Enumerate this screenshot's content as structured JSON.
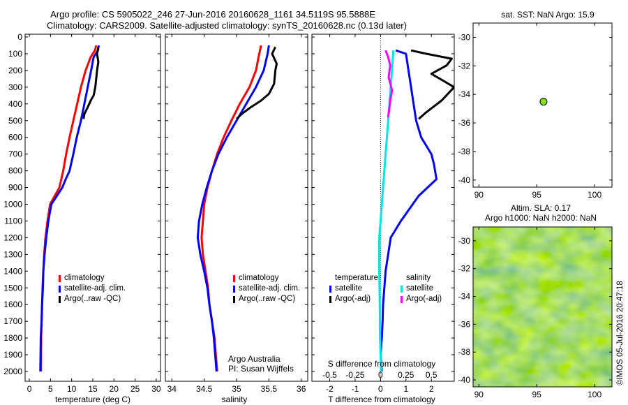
{
  "header": {
    "line1": "Argo profile: CS 5905022_246 27-Jun-2016 20160628_1161 34.5119S 95.5888E",
    "line2": "Climatology: CARS2009. Satellite-adjusted climatology: synTS_20160628.nc (0.13d later)"
  },
  "colors": {
    "climatology": "#ff0000",
    "satellite": "#0000ff",
    "argo": "#000000",
    "satellite_salinity": "#00e5e5",
    "argo_salinity": "#ff00ff",
    "map_dot": "#88dd22"
  },
  "depth_ticks": [
    "0",
    "100",
    "200",
    "300",
    "400",
    "500",
    "600",
    "700",
    "800",
    "900",
    "1000",
    "1100",
    "1200",
    "1300",
    "1400",
    "1500",
    "1600",
    "1700",
    "1800",
    "1900",
    "2000"
  ],
  "panel_temp": {
    "xlabel": "temperature (deg C)",
    "ticks": [
      "0",
      "5",
      "10",
      "15",
      "20",
      "25",
      "30"
    ],
    "legend": [
      "climatology",
      "satellite-adj. clim.",
      "Argo(..raw -QC)"
    ]
  },
  "panel_sal": {
    "xlabel": "salinity",
    "ticks": [
      "34",
      "34.5",
      "35",
      "35.5",
      "36"
    ],
    "legend": [
      "climatology",
      "satellite-adj. clim.",
      "Argo(..raw -QC)"
    ],
    "note1": "Argo Australia",
    "note2": "PI: Susan Wijffels"
  },
  "panel_diff": {
    "xlabel": "T difference from climatology",
    "ticks": [
      "-2",
      "-1",
      "0",
      "1",
      "2"
    ],
    "top_xlabel": "S difference from climatology",
    "top_ticks": [
      "-0.5",
      "-0.25",
      "0",
      "0.25",
      "0.5"
    ],
    "legend_t_head": "temperature",
    "legend_t": [
      "satellite",
      "Argo(-adj)"
    ],
    "legend_s_head": "salinity",
    "legend_s": [
      "satellite",
      "Argo(-adj)"
    ]
  },
  "map1": {
    "title": "sat. SST: NaN Argo: 15.9",
    "xticks": [
      "90",
      "95",
      "100"
    ],
    "yticks": [
      "-30",
      "-32",
      "-34",
      "-36",
      "-38",
      "-40"
    ]
  },
  "map2": {
    "title1": "Altim. SLA: 0.17",
    "title2": "Argo h1000: NaN h2000: NaN",
    "xticks": [
      "90",
      "95",
      "100"
    ],
    "yticks": [
      "-30",
      "-32",
      "-34",
      "-36",
      "-38",
      "-40"
    ]
  },
  "credit": "©IMOS 05-Jul-2016 20:47:18",
  "chart_data": [
    {
      "type": "line",
      "xlabel": "temperature (deg C)",
      "ylabel": "",
      "xlim": [
        -1,
        31
      ],
      "ylim": [
        2050,
        0
      ],
      "series": [
        {
          "name": "climatology",
          "color": "#ff0000",
          "x": [
            15.8,
            15.5,
            14.5,
            13.3,
            12.2,
            11.3,
            10.4,
            9.5,
            8.7,
            8.0,
            7.1,
            6.0,
            4.9,
            4.3,
            3.8,
            3.5,
            3.3,
            3.1,
            3.0,
            2.9,
            2.8,
            2.75
          ],
          "y": [
            50,
            80,
            120,
            200,
            300,
            400,
            500,
            600,
            700,
            800,
            900,
            950,
            1000,
            1100,
            1200,
            1300,
            1400,
            1500,
            1600,
            1700,
            1800,
            2000
          ]
        },
        {
          "name": "satellite-adj. clim.",
          "color": "#0000ff",
          "x": [
            16.4,
            16.2,
            15.2,
            14.6,
            13.8,
            13.0,
            12.2,
            11.2,
            10.4,
            9.5,
            8.6,
            7.8,
            6.5,
            5.2,
            4.5,
            4.0,
            3.6,
            3.3,
            3.2,
            3.0,
            2.9,
            2.7,
            2.6
          ],
          "y": [
            50,
            80,
            120,
            200,
            300,
            400,
            500,
            600,
            700,
            800,
            850,
            900,
            950,
            1000,
            1100,
            1200,
            1300,
            1400,
            1500,
            1600,
            1700,
            1800,
            2000
          ]
        },
        {
          "name": "Argo(..raw -QC)",
          "color": "#000000",
          "x": [
            16.3,
            16.0,
            16.3,
            16.0,
            15.6,
            15.2,
            14.5,
            13.8,
            13.0,
            12.8
          ],
          "y": [
            60,
            100,
            150,
            200,
            300,
            350,
            380,
            420,
            460,
            490
          ]
        }
      ]
    },
    {
      "type": "line",
      "xlabel": "salinity",
      "ylabel": "",
      "xlim": [
        33.9,
        36.1
      ],
      "ylim": [
        2050,
        0
      ],
      "series": [
        {
          "name": "climatology",
          "color": "#ff0000",
          "x": [
            35.38,
            35.35,
            35.3,
            35.2,
            35.05,
            34.92,
            34.8,
            34.7,
            34.62,
            34.55,
            34.5,
            34.48,
            34.46,
            34.48,
            34.52,
            34.56,
            34.58,
            34.62,
            34.66,
            34.68,
            34.69,
            34.7
          ],
          "y": [
            50,
            100,
            200,
            300,
            400,
            500,
            600,
            700,
            800,
            900,
            1000,
            1100,
            1200,
            1300,
            1400,
            1500,
            1600,
            1700,
            1800,
            1900,
            1950,
            2000
          ]
        },
        {
          "name": "satellite-adj. clim.",
          "color": "#0000ff",
          "x": [
            35.5,
            35.48,
            35.42,
            35.3,
            35.15,
            35.0,
            34.85,
            34.72,
            34.62,
            34.54,
            34.47,
            34.42,
            34.4,
            34.44,
            34.5,
            34.55,
            34.58,
            34.62,
            34.65,
            34.67,
            34.69
          ],
          "y": [
            50,
            100,
            200,
            300,
            400,
            500,
            600,
            700,
            800,
            900,
            1000,
            1100,
            1200,
            1300,
            1400,
            1500,
            1600,
            1700,
            1800,
            1900,
            2000
          ]
        },
        {
          "name": "Argo(..raw -QC)",
          "color": "#000000",
          "x": [
            35.6,
            35.55,
            35.62,
            35.6,
            35.58,
            35.5,
            35.38,
            35.22,
            35.08,
            35.0
          ],
          "y": [
            60,
            100,
            160,
            200,
            280,
            340,
            380,
            420,
            460,
            490
          ]
        }
      ]
    },
    {
      "type": "line",
      "xlabel": "T difference from climatology",
      "ylabel": "",
      "xlim": [
        -2.7,
        2.9
      ],
      "ylim": [
        2050,
        0
      ],
      "series": [
        {
          "name": "temperature satellite",
          "color": "#0000ff",
          "x": [
            0.6,
            1.0,
            1.1,
            1.2,
            1.3,
            1.4,
            1.6,
            1.8,
            2.0,
            2.1,
            2.2,
            1.5,
            0.8,
            0.4,
            0.3,
            0.2,
            0.15,
            0.1,
            0.08,
            0.05,
            0.0,
            0.05
          ],
          "y": [
            80,
            100,
            200,
            300,
            400,
            500,
            600,
            650,
            700,
            760,
            850,
            950,
            1100,
            1200,
            1300,
            1400,
            1500,
            1600,
            1700,
            1800,
            1900,
            2000
          ]
        },
        {
          "name": "temperature Argo(-adj)",
          "color": "#000000",
          "x": [
            1.2,
            1.8,
            2.8,
            2.6,
            2.0,
            2.9,
            2.4,
            1.8,
            1.5
          ],
          "y": [
            80,
            100,
            130,
            170,
            220,
            300,
            380,
            450,
            490
          ]
        },
        {
          "name": "salinity satellite",
          "color": "#00e5e5",
          "x": [
            0.5,
            0.45,
            0.4,
            0.35,
            0.3,
            0.25,
            0.2,
            0.15,
            0.1,
            0.05,
            0.0,
            -0.05,
            -0.05,
            -0.03,
            -0.02,
            0.0,
            0.02
          ],
          "y": [
            80,
            200,
            300,
            400,
            500,
            600,
            700,
            800,
            900,
            1000,
            1100,
            1200,
            1400,
            1600,
            1800,
            1900,
            2000
          ]
        },
        {
          "name": "salinity Argo(-adj)",
          "color": "#ff00ff",
          "x": [
            0.2,
            0.3,
            0.38,
            0.32,
            0.45,
            0.38,
            0.35,
            0.3
          ],
          "y": [
            80,
            120,
            170,
            240,
            320,
            380,
            420,
            480
          ]
        }
      ]
    },
    {
      "type": "scatter",
      "title": "sat. SST: NaN Argo: 15.9",
      "xlim": [
        89.5,
        101.5
      ],
      "ylim": [
        -40.5,
        -29
      ],
      "x": [
        95.59
      ],
      "y": [
        -34.51
      ]
    },
    {
      "type": "heatmap",
      "title": "Altim. SLA: 0.17",
      "xlim": [
        89.5,
        101.5
      ],
      "ylim": [
        -40.5,
        -29
      ]
    }
  ]
}
